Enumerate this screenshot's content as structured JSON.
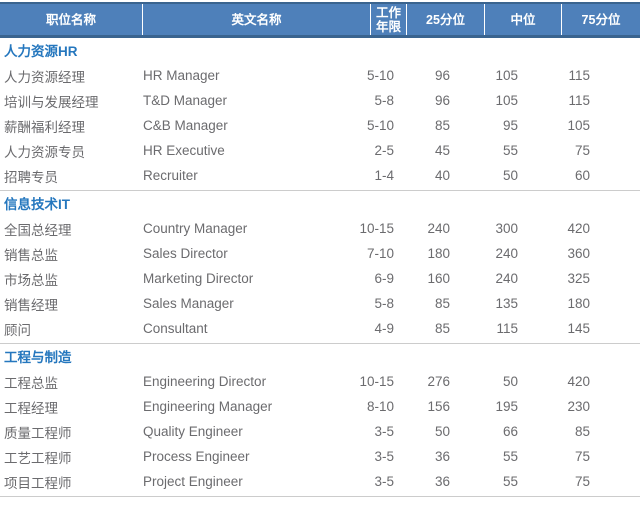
{
  "table": {
    "columns": [
      "职位名称",
      "英文名称",
      "工作年限",
      "25分位",
      "中位",
      "75分位"
    ],
    "sections": [
      {
        "title": "人力资源HR",
        "rows": [
          [
            "人力资源经理",
            "HR Manager",
            "5-10",
            "96",
            "105",
            "115"
          ],
          [
            "培训与发展经理",
            "T&D Manager",
            "5-8",
            "96",
            "105",
            "115"
          ],
          [
            "薪酬福利经理",
            "C&B Manager",
            "5-10",
            "85",
            "95",
            "105"
          ],
          [
            "人力资源专员",
            "HR Executive",
            "2-5",
            "45",
            "55",
            "75"
          ],
          [
            "招聘专员",
            "Recruiter",
            "1-4",
            "40",
            "50",
            "60"
          ]
        ]
      },
      {
        "title": "信息技术IT",
        "rows": [
          [
            "全国总经理",
            "Country Manager",
            "10-15",
            "240",
            "300",
            "420"
          ],
          [
            "销售总监",
            "Sales Director",
            "7-10",
            "180",
            "240",
            "360"
          ],
          [
            "市场总监",
            "Marketing Director",
            "6-9",
            "160",
            "240",
            "325"
          ],
          [
            "销售经理",
            "Sales Manager",
            "5-8",
            "85",
            "135",
            "180"
          ],
          [
            "顾问",
            "Consultant",
            "4-9",
            "85",
            "115",
            "145"
          ]
        ]
      },
      {
        "title": "工程与制造",
        "rows": [
          [
            "工程总监",
            "Engineering Director",
            "10-15",
            "276",
            "50",
            "420"
          ],
          [
            "工程经理",
            "Engineering Manager",
            "8-10",
            "156",
            "195",
            "230"
          ],
          [
            "质量工程师",
            "Quality Engineer",
            "3-5",
            "50",
            "66",
            "85"
          ],
          [
            "工艺工程师",
            "Process Engineer",
            "3-5",
            "36",
            "55",
            "75"
          ],
          [
            "项目工程师",
            "Project Engineer",
            "3-5",
            "36",
            "55",
            "75"
          ]
        ]
      }
    ]
  },
  "colors": {
    "header_bg": "#4e80ba",
    "header_border": "#3a648f",
    "header_text": "#ffffff",
    "section_title": "#2577be",
    "data_text": "#6b6b6e",
    "divider": "#cccccc",
    "page_bg": "#ffffff"
  }
}
